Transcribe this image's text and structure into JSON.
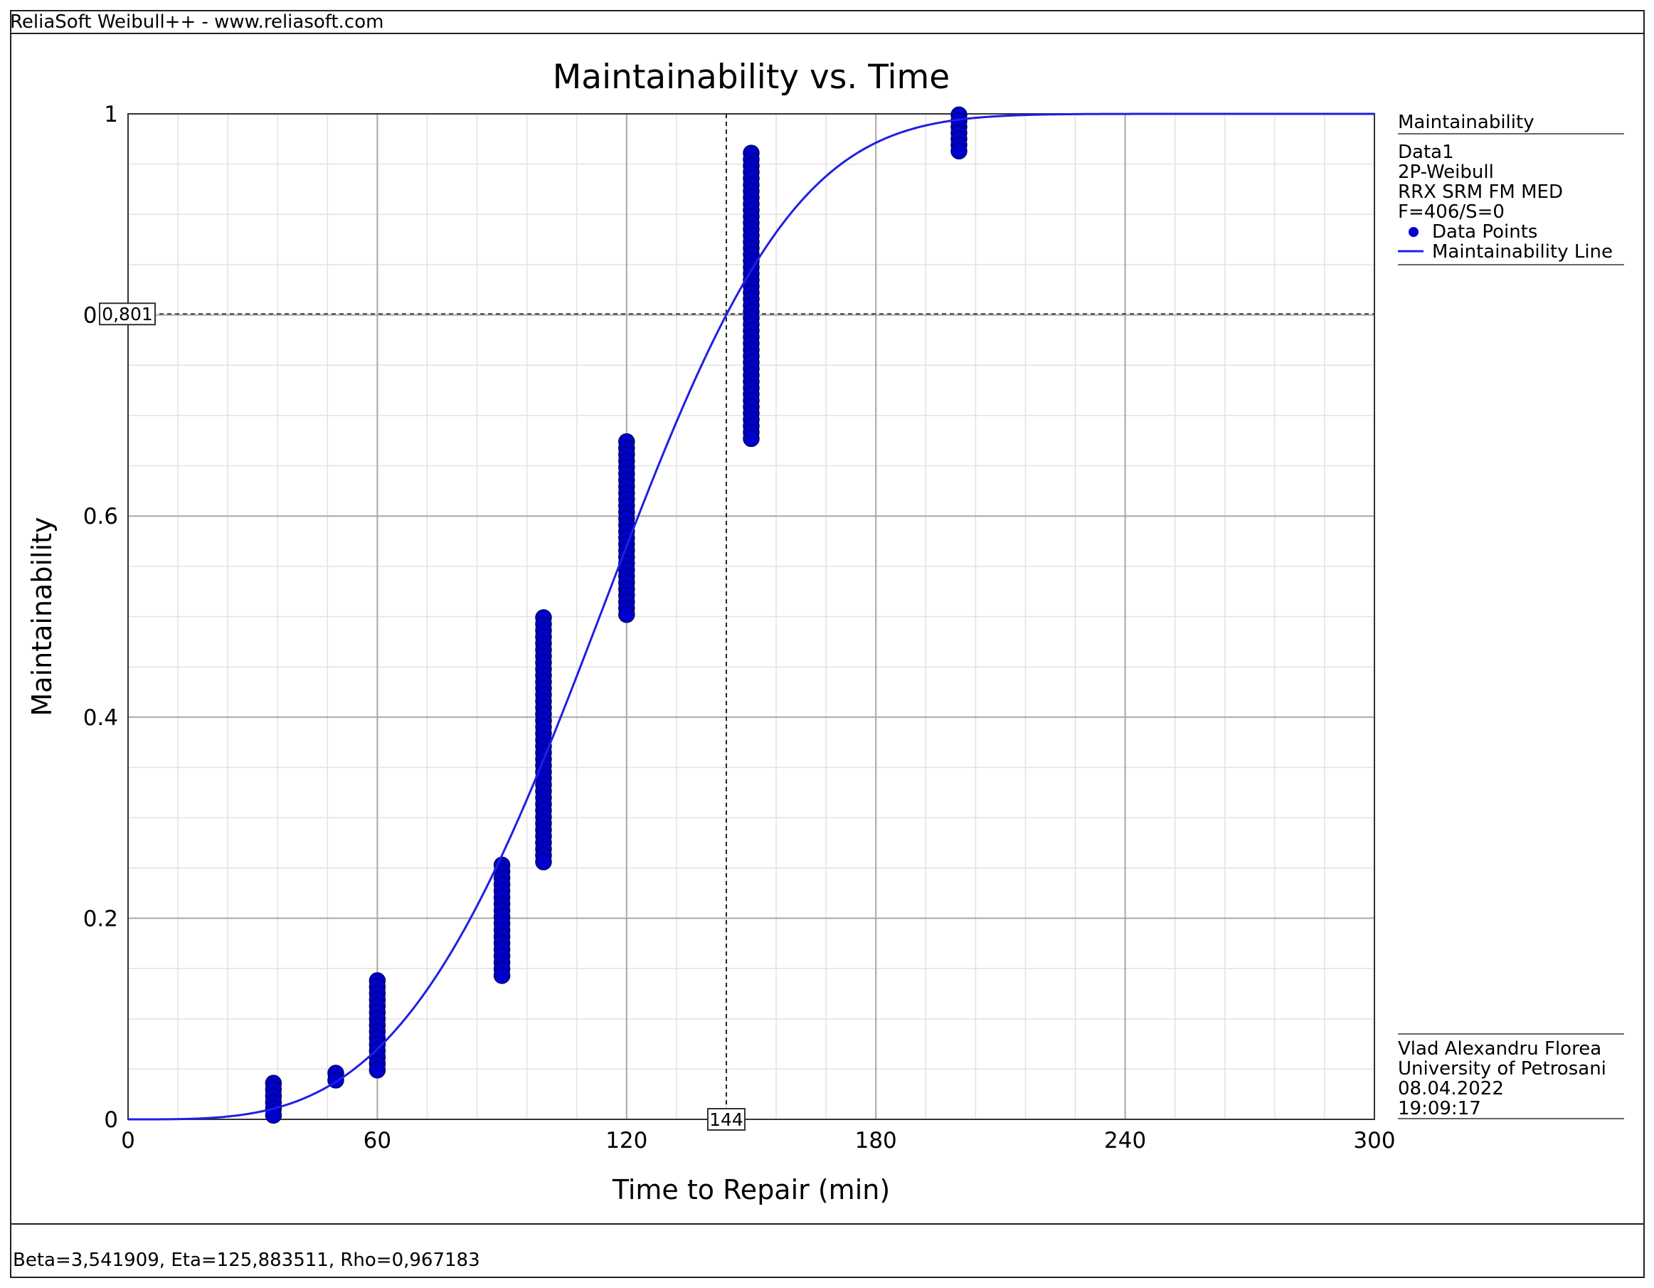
{
  "window": {
    "title": "ReliaSoft Weibull++ - www.reliasoft.com"
  },
  "status": {
    "text": "Beta=3,541909, Eta=125,883511, Rho=0,967183"
  },
  "chart_data": {
    "type": "scatter",
    "title": "Maintainability vs. Time",
    "xlabel": "Time to Repair (min)",
    "ylabel": "Maintainability",
    "xlim": [
      0,
      300
    ],
    "ylim": [
      0,
      1
    ],
    "x_ticks": [
      "0",
      "60",
      "120",
      "180",
      "240",
      "300"
    ],
    "y_ticks": [
      "0",
      "0.2",
      "0.4",
      "0.6",
      "0.8",
      "1"
    ],
    "grid": true,
    "legend_position": "right",
    "series": [
      {
        "name": "Data Points",
        "color": "#0000cc",
        "points": [
          {
            "x": 35,
            "ymin": 0.004,
            "ymax": 0.036
          },
          {
            "x": 50,
            "ymin": 0.039,
            "ymax": 0.046
          },
          {
            "x": 60,
            "ymin": 0.049,
            "ymax": 0.138
          },
          {
            "x": 90,
            "ymin": 0.143,
            "ymax": 0.253
          },
          {
            "x": 100,
            "ymin": 0.256,
            "ymax": 0.499
          },
          {
            "x": 120,
            "ymin": 0.502,
            "ymax": 0.674
          },
          {
            "x": 150,
            "ymin": 0.677,
            "ymax": 0.961
          },
          {
            "x": 200,
            "ymin": 0.963,
            "ymax": 0.999
          }
        ]
      },
      {
        "name": "Maintainability Line",
        "color": "#1f1fe6",
        "model": "weibull-2p",
        "beta": 3.541909,
        "eta": 125.883511
      }
    ],
    "crosshair": {
      "x": 144,
      "y": 0.801,
      "x_label": "144",
      "y_label": "0,801"
    }
  },
  "legend": {
    "header": "Maintainability",
    "lines": [
      "Data1",
      "2P-Weibull",
      "RRX SRM FM MED",
      "F=406/S=0"
    ],
    "items": [
      "Data Points",
      "Maintainability Line"
    ]
  },
  "footer_info": {
    "lines": [
      "Vlad Alexandru Florea",
      "University of Petrosani",
      "08.04.2022",
      "19:09:17"
    ]
  }
}
